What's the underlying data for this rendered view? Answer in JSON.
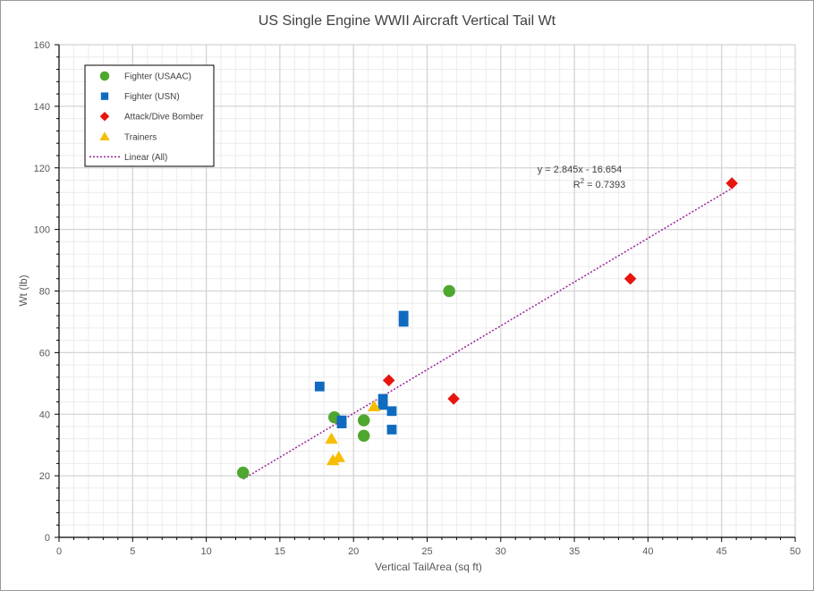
{
  "chart_data": {
    "type": "scatter",
    "title": "US Single Engine WWII Aircraft Vertical Tail Wt",
    "xlabel": "Vertical TailArea (sq ft)",
    "ylabel": "Wt (lb)",
    "xlim": [
      0,
      50
    ],
    "ylim": [
      0,
      160
    ],
    "x_ticks": [
      "0",
      "5",
      "10",
      "15",
      "20",
      "25",
      "30",
      "35",
      "40",
      "45",
      "50"
    ],
    "y_ticks": [
      "0",
      "20",
      "40",
      "60",
      "80",
      "100",
      "120",
      "140",
      "160"
    ],
    "grid": true,
    "legend_position": "top-left",
    "series": [
      {
        "name": "Fighter (USAAC)",
        "marker": "circle",
        "color": "#4ea72e",
        "points": [
          [
            12.5,
            21
          ],
          [
            18.7,
            39
          ],
          [
            20.7,
            38
          ],
          [
            20.7,
            33
          ],
          [
            26.5,
            80
          ]
        ]
      },
      {
        "name": "Fighter (USN)",
        "marker": "square",
        "color": "#0f6bbf",
        "points": [
          [
            17.7,
            49
          ],
          [
            19.2,
            38
          ],
          [
            19.2,
            37
          ],
          [
            22.0,
            45
          ],
          [
            22.0,
            43
          ],
          [
            22.6,
            41
          ],
          [
            22.6,
            35
          ],
          [
            23.4,
            72
          ],
          [
            23.4,
            70
          ]
        ]
      },
      {
        "name": "Attack/Dive Bomber",
        "marker": "diamond",
        "color": "#e8150c",
        "points": [
          [
            22.4,
            51
          ],
          [
            26.8,
            45
          ],
          [
            38.8,
            84
          ],
          [
            45.7,
            115
          ]
        ]
      },
      {
        "name": "Trainers",
        "marker": "triangle",
        "color": "#f7bd00",
        "points": [
          [
            18.5,
            32
          ],
          [
            18.6,
            25
          ],
          [
            19.0,
            26
          ],
          [
            21.4,
            42.5
          ]
        ]
      }
    ],
    "trendline": {
      "name": "Linear (All)",
      "slope": 2.845,
      "intercept": -16.654,
      "x_range": [
        12.5,
        45.7
      ],
      "equation": "y = 2.845x - 16.654",
      "r2_label": "R",
      "r2_sup": "2",
      "r2_value": " = 0.7393",
      "color": "#9b1f9b"
    }
  }
}
